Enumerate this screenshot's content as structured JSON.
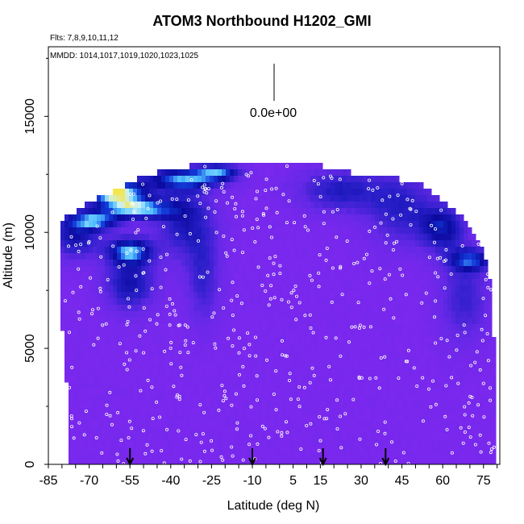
{
  "chart_data": {
    "type": "heatmap",
    "title": "ATOM3 Northbound H1202_GMI",
    "flights_note": "Flts: 7,8,9,10,11,12",
    "dates_note": "MMDD: 1014,1017,1019,1020,1023,1025",
    "xlabel": "Latitude (deg N)",
    "ylabel": "Altitude (m)",
    "xlim": [
      -85,
      81
    ],
    "ylim": [
      0,
      18000
    ],
    "x_ticks": [
      -85,
      -70,
      -55,
      -40,
      -25,
      -10,
      5,
      15,
      30,
      45,
      60,
      75
    ],
    "y_ticks": [
      0,
      5000,
      10000,
      15000
    ],
    "scale_label": "0.0e+00",
    "colors": {
      "background_field": "#8a2be2",
      "low": "#7f20f0",
      "mid": "#2020c0",
      "high": "#0a0a9a",
      "cyan": "#5fd0ff",
      "peak": "#f5e64a",
      "markers": "#ffffff"
    },
    "profile_arrows_lat": [
      -55,
      -10,
      16,
      39
    ],
    "grid": false,
    "legend": "none",
    "curtain_outline": [
      [
        -80,
        10500
      ],
      [
        -72,
        11200
      ],
      [
        -62,
        11700
      ],
      [
        -52,
        12300
      ],
      [
        -42,
        12700
      ],
      [
        -30,
        12900
      ],
      [
        -18,
        12900
      ],
      [
        0,
        12900
      ],
      [
        15,
        12900
      ],
      [
        25,
        12600
      ],
      [
        40,
        12400
      ],
      [
        52,
        12100
      ],
      [
        62,
        11200
      ],
      [
        70,
        10300
      ],
      [
        75,
        9200
      ],
      [
        78,
        7500
      ],
      [
        79,
        5000
      ],
      [
        79,
        0
      ],
      [
        -77,
        0
      ],
      [
        -78,
        3000
      ],
      [
        -80,
        6000
      ]
    ],
    "enhancements": [
      {
        "lat": -60,
        "alt": 11700,
        "lat_w": 14,
        "alt_h": 700,
        "level": 0.95
      },
      {
        "lat": -52,
        "alt": 11000,
        "lat_w": 16,
        "alt_h": 500,
        "level": 0.75
      },
      {
        "lat": -68,
        "alt": 10500,
        "lat_w": 12,
        "alt_h": 500,
        "level": 0.65
      },
      {
        "lat": -55,
        "alt": 9200,
        "lat_w": 10,
        "alt_h": 700,
        "level": 0.7
      },
      {
        "lat": -35,
        "alt": 12300,
        "lat_w": 18,
        "alt_h": 600,
        "level": 0.65
      },
      {
        "lat": -22,
        "alt": 12600,
        "lat_w": 10,
        "alt_h": 400,
        "level": 0.55
      },
      {
        "lat": -75,
        "alt": 9800,
        "lat_w": 12,
        "alt_h": 1200,
        "level": 0.45
      },
      {
        "lat": -55,
        "alt": 7800,
        "lat_w": 12,
        "alt_h": 1500,
        "level": 0.45
      },
      {
        "lat": -35,
        "alt": 10500,
        "lat_w": 14,
        "alt_h": 2000,
        "level": 0.4
      },
      {
        "lat": -28,
        "alt": 8000,
        "lat_w": 8,
        "alt_h": 2500,
        "level": 0.3
      },
      {
        "lat": 22,
        "alt": 11800,
        "lat_w": 20,
        "alt_h": 1200,
        "level": 0.38
      },
      {
        "lat": 45,
        "alt": 11000,
        "lat_w": 16,
        "alt_h": 2000,
        "level": 0.35
      },
      {
        "lat": 60,
        "alt": 10200,
        "lat_w": 10,
        "alt_h": 1200,
        "level": 0.5
      },
      {
        "lat": 70,
        "alt": 8800,
        "lat_w": 10,
        "alt_h": 600,
        "level": 0.55
      },
      {
        "lat": 68,
        "alt": 7200,
        "lat_w": 12,
        "alt_h": 2500,
        "level": 0.3
      }
    ]
  }
}
